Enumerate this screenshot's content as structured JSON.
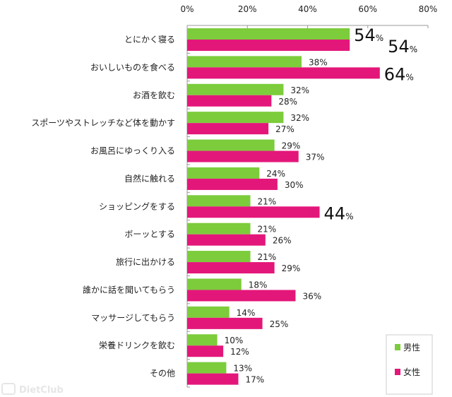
{
  "chart_data": {
    "type": "bar",
    "orientation": "horizontal",
    "title": "",
    "xlabel": "",
    "ylabel": "",
    "xlim": [
      0,
      80
    ],
    "x_ticks": [
      "0%",
      "20%",
      "40%",
      "60%",
      "80%"
    ],
    "x_tick_values": [
      0,
      20,
      40,
      60,
      80
    ],
    "grid": false,
    "legend_position": "bottom-right",
    "categories": [
      "とにかく寝る",
      "おいしいものを食べる",
      "お酒を飲む",
      "スポーツやストレッチなど体を動かす",
      "お風呂にゆっくり入る",
      "自然に触れる",
      "ショッピングをする",
      "ボーッとする",
      "旅行に出かける",
      "誰かに話を聞いてもらう",
      "マッサージしてもらう",
      "栄養ドリンクを飲む",
      "その他"
    ],
    "series": [
      {
        "name": "男性",
        "color": "#7ccc3c",
        "values": [
          54,
          38,
          32,
          32,
          29,
          24,
          21,
          21,
          21,
          18,
          14,
          10,
          13
        ],
        "highlight": [
          true,
          false,
          false,
          false,
          false,
          false,
          false,
          false,
          false,
          false,
          false,
          false,
          false
        ]
      },
      {
        "name": "女性",
        "color": "#e3177a",
        "values": [
          54,
          64,
          28,
          27,
          37,
          30,
          44,
          26,
          29,
          36,
          25,
          12,
          17
        ],
        "highlight": [
          true,
          true,
          false,
          false,
          false,
          false,
          true,
          false,
          false,
          false,
          false,
          false,
          false
        ]
      }
    ],
    "value_suffix": "%"
  },
  "watermark": "DietClub"
}
